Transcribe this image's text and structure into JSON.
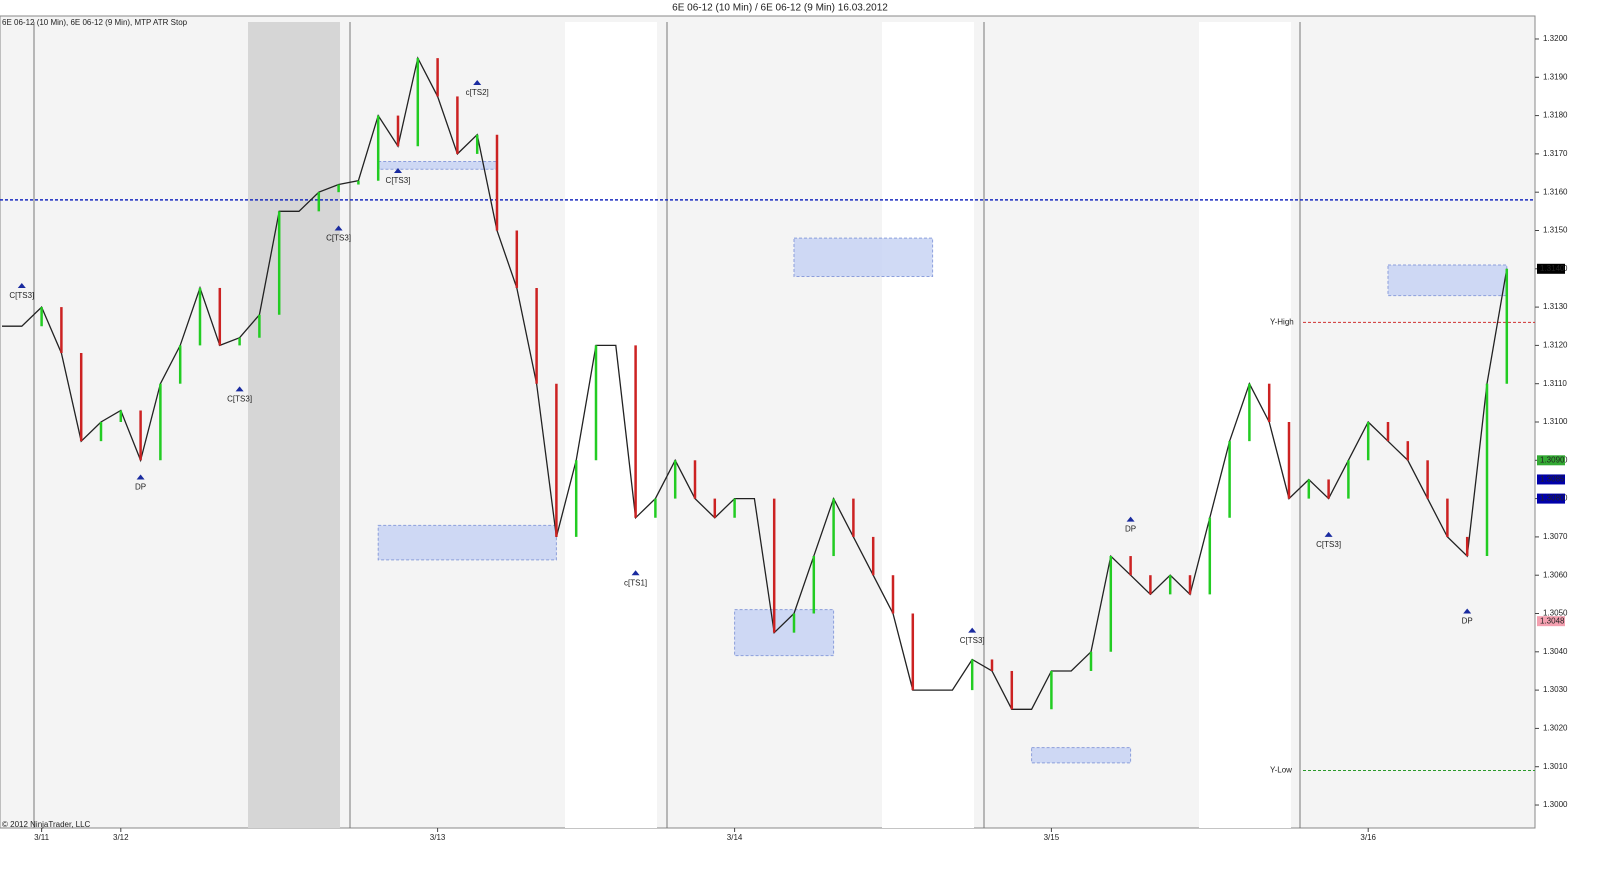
{
  "chart_data": {
    "type": "line",
    "title": "6E 06-12 (10 Min) / 6E 06-12 (9 Min)  16.03.2012",
    "subtitle": "6E 06-12 (10 Min), 6E 06-12 (9 Min), MTP ATR Stop",
    "footer": "© 2012 NinjaTrader, LLC",
    "categories": [
      null,
      null,
      "3/11",
      null,
      null,
      null,
      "3/12",
      null,
      null,
      null,
      null,
      null,
      null,
      null,
      null,
      null,
      null,
      null,
      null,
      null,
      null,
      null,
      "3/13",
      null,
      null,
      null,
      null,
      null,
      null,
      null,
      null,
      null,
      null,
      null,
      null,
      null,
      null,
      "3/14",
      null,
      null,
      null,
      null,
      null,
      null,
      null,
      null,
      null,
      null,
      null,
      null,
      null,
      null,
      null,
      "3/15",
      null,
      null,
      null,
      null,
      null,
      null,
      null,
      null,
      null,
      null,
      null,
      null,
      null,
      null,
      null,
      "3/16",
      null,
      null,
      null,
      null,
      null,
      null,
      null
    ],
    "series": [
      {
        "name": "6E 06-12",
        "color": "#222222",
        "values": [
          1.3125,
          1.3125,
          1.313,
          1.3118,
          1.3095,
          1.31,
          1.3103,
          1.309,
          1.311,
          1.312,
          1.3135,
          1.312,
          1.3122,
          1.3128,
          1.3155,
          1.3155,
          1.316,
          1.3162,
          1.3163,
          1.318,
          1.3172,
          1.3195,
          1.3185,
          1.317,
          1.3175,
          1.315,
          1.3135,
          1.311,
          1.307,
          1.309,
          1.312,
          1.312,
          1.3075,
          1.308,
          1.309,
          1.308,
          1.3075,
          1.308,
          1.308,
          1.3045,
          1.305,
          1.3065,
          1.308,
          1.307,
          1.306,
          1.305,
          1.303,
          1.303,
          1.303,
          1.3038,
          1.3035,
          1.3025,
          1.3025,
          1.3035,
          1.3035,
          1.304,
          1.3065,
          1.306,
          1.3055,
          1.306,
          1.3055,
          1.3075,
          1.3095,
          1.311,
          1.31,
          1.308,
          1.3085,
          1.308,
          1.309,
          1.31,
          1.3095,
          1.309,
          1.308,
          1.307,
          1.3065,
          1.311,
          1.314
        ]
      }
    ],
    "ylim": [
      1.2994,
      1.3206
    ],
    "yticks": [
      {
        "value": 1.3,
        "label": "1.3000"
      },
      {
        "value": 1.301,
        "label": "1.3010"
      },
      {
        "value": 1.302,
        "label": "1.3020"
      },
      {
        "value": 1.303,
        "label": "1.3030"
      },
      {
        "value": 1.304,
        "label": "1.3040"
      },
      {
        "value": 1.305,
        "label": "1.3050"
      },
      {
        "value": 1.306,
        "label": "1.3060"
      },
      {
        "value": 1.307,
        "label": "1.3070"
      },
      {
        "value": 1.308,
        "label": "1.3080"
      },
      {
        "value": 1.309,
        "label": "1.3090"
      },
      {
        "value": 1.31,
        "label": "1.3100"
      },
      {
        "value": 1.311,
        "label": "1.3110"
      },
      {
        "value": 1.312,
        "label": "1.3120"
      },
      {
        "value": 1.313,
        "label": "1.3130"
      },
      {
        "value": 1.314,
        "label": "1.3140"
      },
      {
        "value": 1.315,
        "label": "1.3150"
      },
      {
        "value": 1.316,
        "label": "1.3160"
      },
      {
        "value": 1.317,
        "label": "1.3170"
      },
      {
        "value": 1.318,
        "label": "1.3180"
      },
      {
        "value": 1.319,
        "label": "1.3190"
      },
      {
        "value": 1.32,
        "label": "1.3200"
      }
    ],
    "price_markers": [
      {
        "value": 1.314,
        "label": "1.3140",
        "color": "#000000"
      },
      {
        "value": 1.309,
        "label": "1.3090",
        "color": "#33aa33"
      },
      {
        "value": 1.3085,
        "label": "1.3085",
        "color": "#0000aa"
      },
      {
        "value": 1.308,
        "label": "1.3080",
        "color": "#0000aa"
      },
      {
        "value": 1.3048,
        "label": "1.3048",
        "color": "#f4a0b0"
      }
    ],
    "levels": [
      {
        "value": 1.3158,
        "color": "#1a2bbf"
      },
      {
        "value": 1.3126,
        "label": "Y-High",
        "color": "#d03030"
      },
      {
        "value": 1.3009,
        "label": "Y-Low",
        "color": "#2a9a2a"
      }
    ],
    "annotations": [
      {
        "text": "C[TS3]",
        "index": 1,
        "value": 1.3135
      },
      {
        "text": "DP",
        "index": 7,
        "value": 1.3085
      },
      {
        "text": "C[TS3]",
        "index": 12,
        "value": 1.3108
      },
      {
        "text": "C[TS3]",
        "index": 17,
        "value": 1.315
      },
      {
        "text": "C[TS3]",
        "index": 20,
        "value": 1.3165
      },
      {
        "text": "c[TS2]",
        "index": 24,
        "value": 1.3188
      },
      {
        "text": "c[TS1]",
        "index": 32,
        "value": 1.306
      },
      {
        "text": "C[TS3]",
        "index": 49,
        "value": 1.3045
      },
      {
        "text": "DP",
        "index": 57,
        "value": 1.3074
      },
      {
        "text": "C[TS3]",
        "index": 67,
        "value": 1.307
      },
      {
        "text": "DP",
        "index": 74,
        "value": 1.305
      }
    ],
    "zones": [
      {
        "from": 19,
        "to": 25,
        "low": 1.3166,
        "high": 1.3168
      },
      {
        "from": 19,
        "to": 28,
        "low": 1.3064,
        "high": 1.3073
      },
      {
        "from": 40,
        "to": 47,
        "low": 1.3138,
        "high": 1.3148
      },
      {
        "from": 37,
        "to": 42,
        "low": 1.3039,
        "high": 1.3051
      },
      {
        "from": 52,
        "to": 57,
        "low": 1.3011,
        "high": 1.3015
      },
      {
        "from": 70,
        "to": 76,
        "low": 1.3133,
        "high": 1.3141
      }
    ]
  }
}
